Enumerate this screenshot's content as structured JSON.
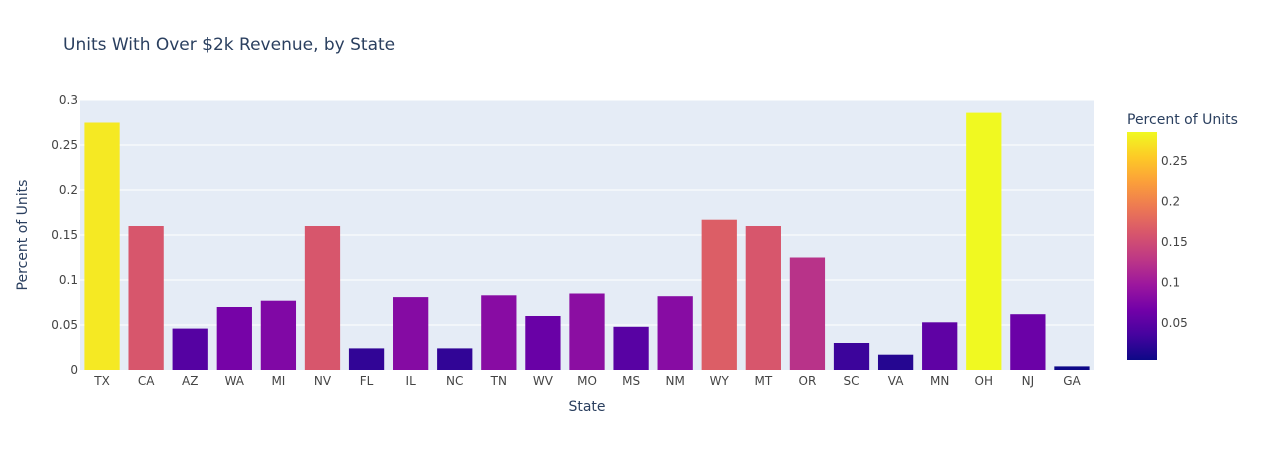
{
  "chart_data": {
    "type": "bar",
    "title": "Units With Over $2k Revenue, by State",
    "xlabel": "State",
    "ylabel": "Percent of Units",
    "ylim": [
      0,
      0.3
    ],
    "yticks": [
      0,
      0.05,
      0.1,
      0.15,
      0.2,
      0.25,
      0.3
    ],
    "ytick_labels": [
      "0",
      "0.05",
      "0.1",
      "0.15",
      "0.2",
      "0.25",
      "0.3"
    ],
    "grid": true,
    "categories": [
      "TX",
      "CA",
      "AZ",
      "WA",
      "MI",
      "NV",
      "FL",
      "IL",
      "NC",
      "TN",
      "WV",
      "MO",
      "MS",
      "NM",
      "WY",
      "MT",
      "OR",
      "SC",
      "VA",
      "MN",
      "OH",
      "NJ",
      "GA"
    ],
    "values": [
      0.275,
      0.16,
      0.046,
      0.07,
      0.077,
      0.16,
      0.024,
      0.081,
      0.024,
      0.083,
      0.06,
      0.085,
      0.048,
      0.082,
      0.167,
      0.16,
      0.125,
      0.03,
      0.017,
      0.053,
      0.286,
      0.062,
      0.004
    ],
    "colorbar": {
      "title": "Percent of Units",
      "scale": "plasma",
      "range": [
        0.004,
        0.286
      ],
      "ticks": [
        0.05,
        0.1,
        0.15,
        0.2,
        0.25
      ],
      "tick_labels": [
        "0.05",
        "0.1",
        "0.15",
        "0.2",
        "0.25"
      ]
    },
    "colors": {
      "plot_bg": "#e5ecf6",
      "grid": "#ffffff",
      "text": "#2a3f5f"
    }
  }
}
